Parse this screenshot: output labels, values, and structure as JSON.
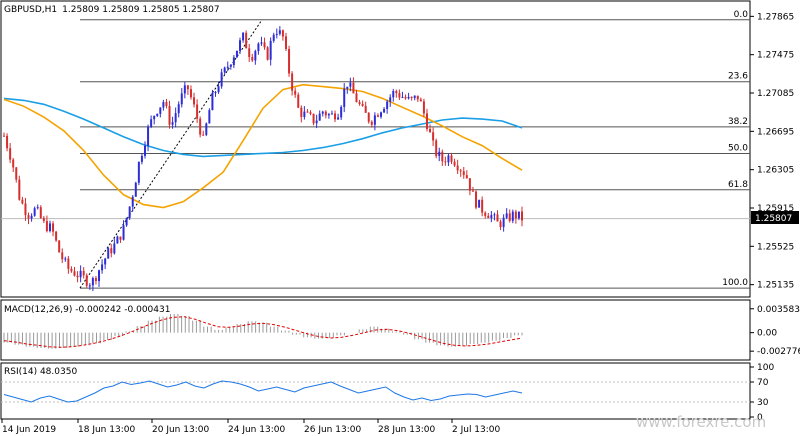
{
  "chart_data": {
    "type": "candlestick",
    "symbol": "GBPUSD,H1",
    "ohlc_label": "1.25809 1.25809 1.25805 1.25807",
    "last_price": "1.25807",
    "price_axis_ticks": [
      "1.27865",
      "1.27475",
      "1.27085",
      "1.26695",
      "1.26305",
      "1.25915",
      "1.25525",
      "1.25135"
    ],
    "ylim": [
      1.2505,
      1.2795
    ],
    "time_labels": [
      "14 Jun 2019",
      "18 Jun 13:00",
      "20 Jun 13:00",
      "24 Jun 13:00",
      "26 Jun 13:00",
      "28 Jun 13:00",
      "2 Jul 13:00"
    ],
    "fibonacci": [
      {
        "label": "0.0",
        "price": 1.2783
      },
      {
        "label": "23.6",
        "price": 1.272
      },
      {
        "label": "38.2",
        "price": 1.2674
      },
      {
        "label": "50.0",
        "price": 1.2647
      },
      {
        "label": "61.8",
        "price": 1.261
      },
      {
        "label": "100.0",
        "price": 1.251
      }
    ],
    "close_path": [
      1.2665,
      1.264,
      1.26,
      1.2585,
      1.259,
      1.2575,
      1.257,
      1.2545,
      1.253,
      1.2525,
      1.252,
      1.2515,
      1.253,
      1.2545,
      1.2555,
      1.257,
      1.26,
      1.264,
      1.267,
      1.269,
      1.27,
      1.2675,
      1.27,
      1.2715,
      1.269,
      1.266,
      1.27,
      1.272,
      1.2735,
      1.275,
      1.2765,
      1.2745,
      1.276,
      1.2745,
      1.2775,
      1.2765,
      1.272,
      1.269,
      1.2685,
      1.268,
      1.269,
      1.2685,
      1.269,
      1.272,
      1.2705,
      1.269,
      1.268,
      1.269,
      1.27,
      1.271,
      1.2705,
      1.27,
      1.2705,
      1.268,
      1.265,
      1.264,
      1.2645,
      1.2635,
      1.2625,
      1.26,
      1.259,
      1.2585,
      1.2575,
      1.258,
      1.2585,
      1.2581
    ],
    "ma_slow": [
      1.2703,
      1.2701,
      1.2697,
      1.269,
      1.2682,
      1.2673,
      1.2664,
      1.2656,
      1.265,
      1.2646,
      1.2644,
      1.2645,
      1.2646,
      1.2647,
      1.2648,
      1.265,
      1.2653,
      1.2657,
      1.2662,
      1.2668,
      1.2673,
      1.2677,
      1.2681,
      1.2683,
      1.2682,
      1.268,
      1.2673
    ],
    "ma_fast": [
      1.2702,
      1.2695,
      1.2684,
      1.267,
      1.265,
      1.2625,
      1.2605,
      1.2595,
      1.2592,
      1.2598,
      1.2612,
      1.2628,
      1.266,
      1.2693,
      1.2712,
      1.2717,
      1.2715,
      1.2713,
      1.271,
      1.2703,
      1.2694,
      1.2685,
      1.2675,
      1.2664,
      1.2655,
      1.2642,
      1.263
    ],
    "macd": {
      "label": "MACD(12,26,9) -0.000242 -0.000431",
      "ticks": [
        "0.003583",
        "0.00",
        "-0.002776"
      ],
      "ylim": [
        -0.0035,
        0.0043
      ],
      "hist": [
        -0.0015,
        -0.0018,
        -0.0021,
        -0.0023,
        -0.0024,
        -0.0023,
        -0.0021,
        -0.0019,
        -0.0016,
        -0.0011,
        -0.0005,
        0.0002,
        0.001,
        0.0018,
        0.0024,
        0.0028,
        0.0025,
        0.0018,
        0.0009,
        0.0004,
        0.0008,
        0.0013,
        0.0017,
        0.0015,
        0.0009,
        0.0003,
        -0.0003,
        -0.0007,
        -0.0009,
        -0.0008,
        -0.0004,
        0.0,
        0.0005,
        0.0009,
        0.0006,
        0.0002,
        -0.0003,
        -0.001,
        -0.0015,
        -0.0019,
        -0.0021,
        -0.002,
        -0.0017,
        -0.0015,
        -0.0012,
        -0.0008,
        -0.0004
      ],
      "signal": [
        -0.0012,
        -0.0014,
        -0.0017,
        -0.0019,
        -0.0021,
        -0.0022,
        -0.0021,
        -0.0019,
        -0.0016,
        -0.0012,
        -0.0007,
        -0.0001,
        0.0006,
        0.0013,
        0.0019,
        0.0023,
        0.0024,
        0.002,
        0.0014,
        0.0009,
        0.0008,
        0.001,
        0.0013,
        0.0014,
        0.0012,
        0.0008,
        0.0003,
        -0.0002,
        -0.0006,
        -0.0008,
        -0.0007,
        -0.0004,
        0.0,
        0.0004,
        0.0005,
        0.0003,
        -0.0001,
        -0.0006,
        -0.0011,
        -0.0016,
        -0.0019,
        -0.002,
        -0.0019,
        -0.0017,
        -0.0014,
        -0.0011,
        -0.0008
      ]
    },
    "rsi": {
      "label": "RSI(14) 48.0350",
      "ticks": [
        "100",
        "70",
        "30",
        "0"
      ],
      "ylim": [
        0,
        100
      ],
      "values": [
        45,
        40,
        35,
        30,
        38,
        42,
        36,
        30,
        32,
        40,
        48,
        58,
        62,
        70,
        65,
        68,
        72,
        66,
        60,
        64,
        70,
        62,
        58,
        66,
        72,
        70,
        66,
        60,
        52,
        56,
        60,
        55,
        50,
        58,
        62,
        66,
        70,
        62,
        55,
        48,
        52,
        56,
        60,
        48,
        40,
        34,
        38,
        33,
        36,
        42,
        44,
        46,
        45,
        40,
        44,
        48,
        52,
        48
      ]
    },
    "watermark": "www.forexre.com"
  }
}
